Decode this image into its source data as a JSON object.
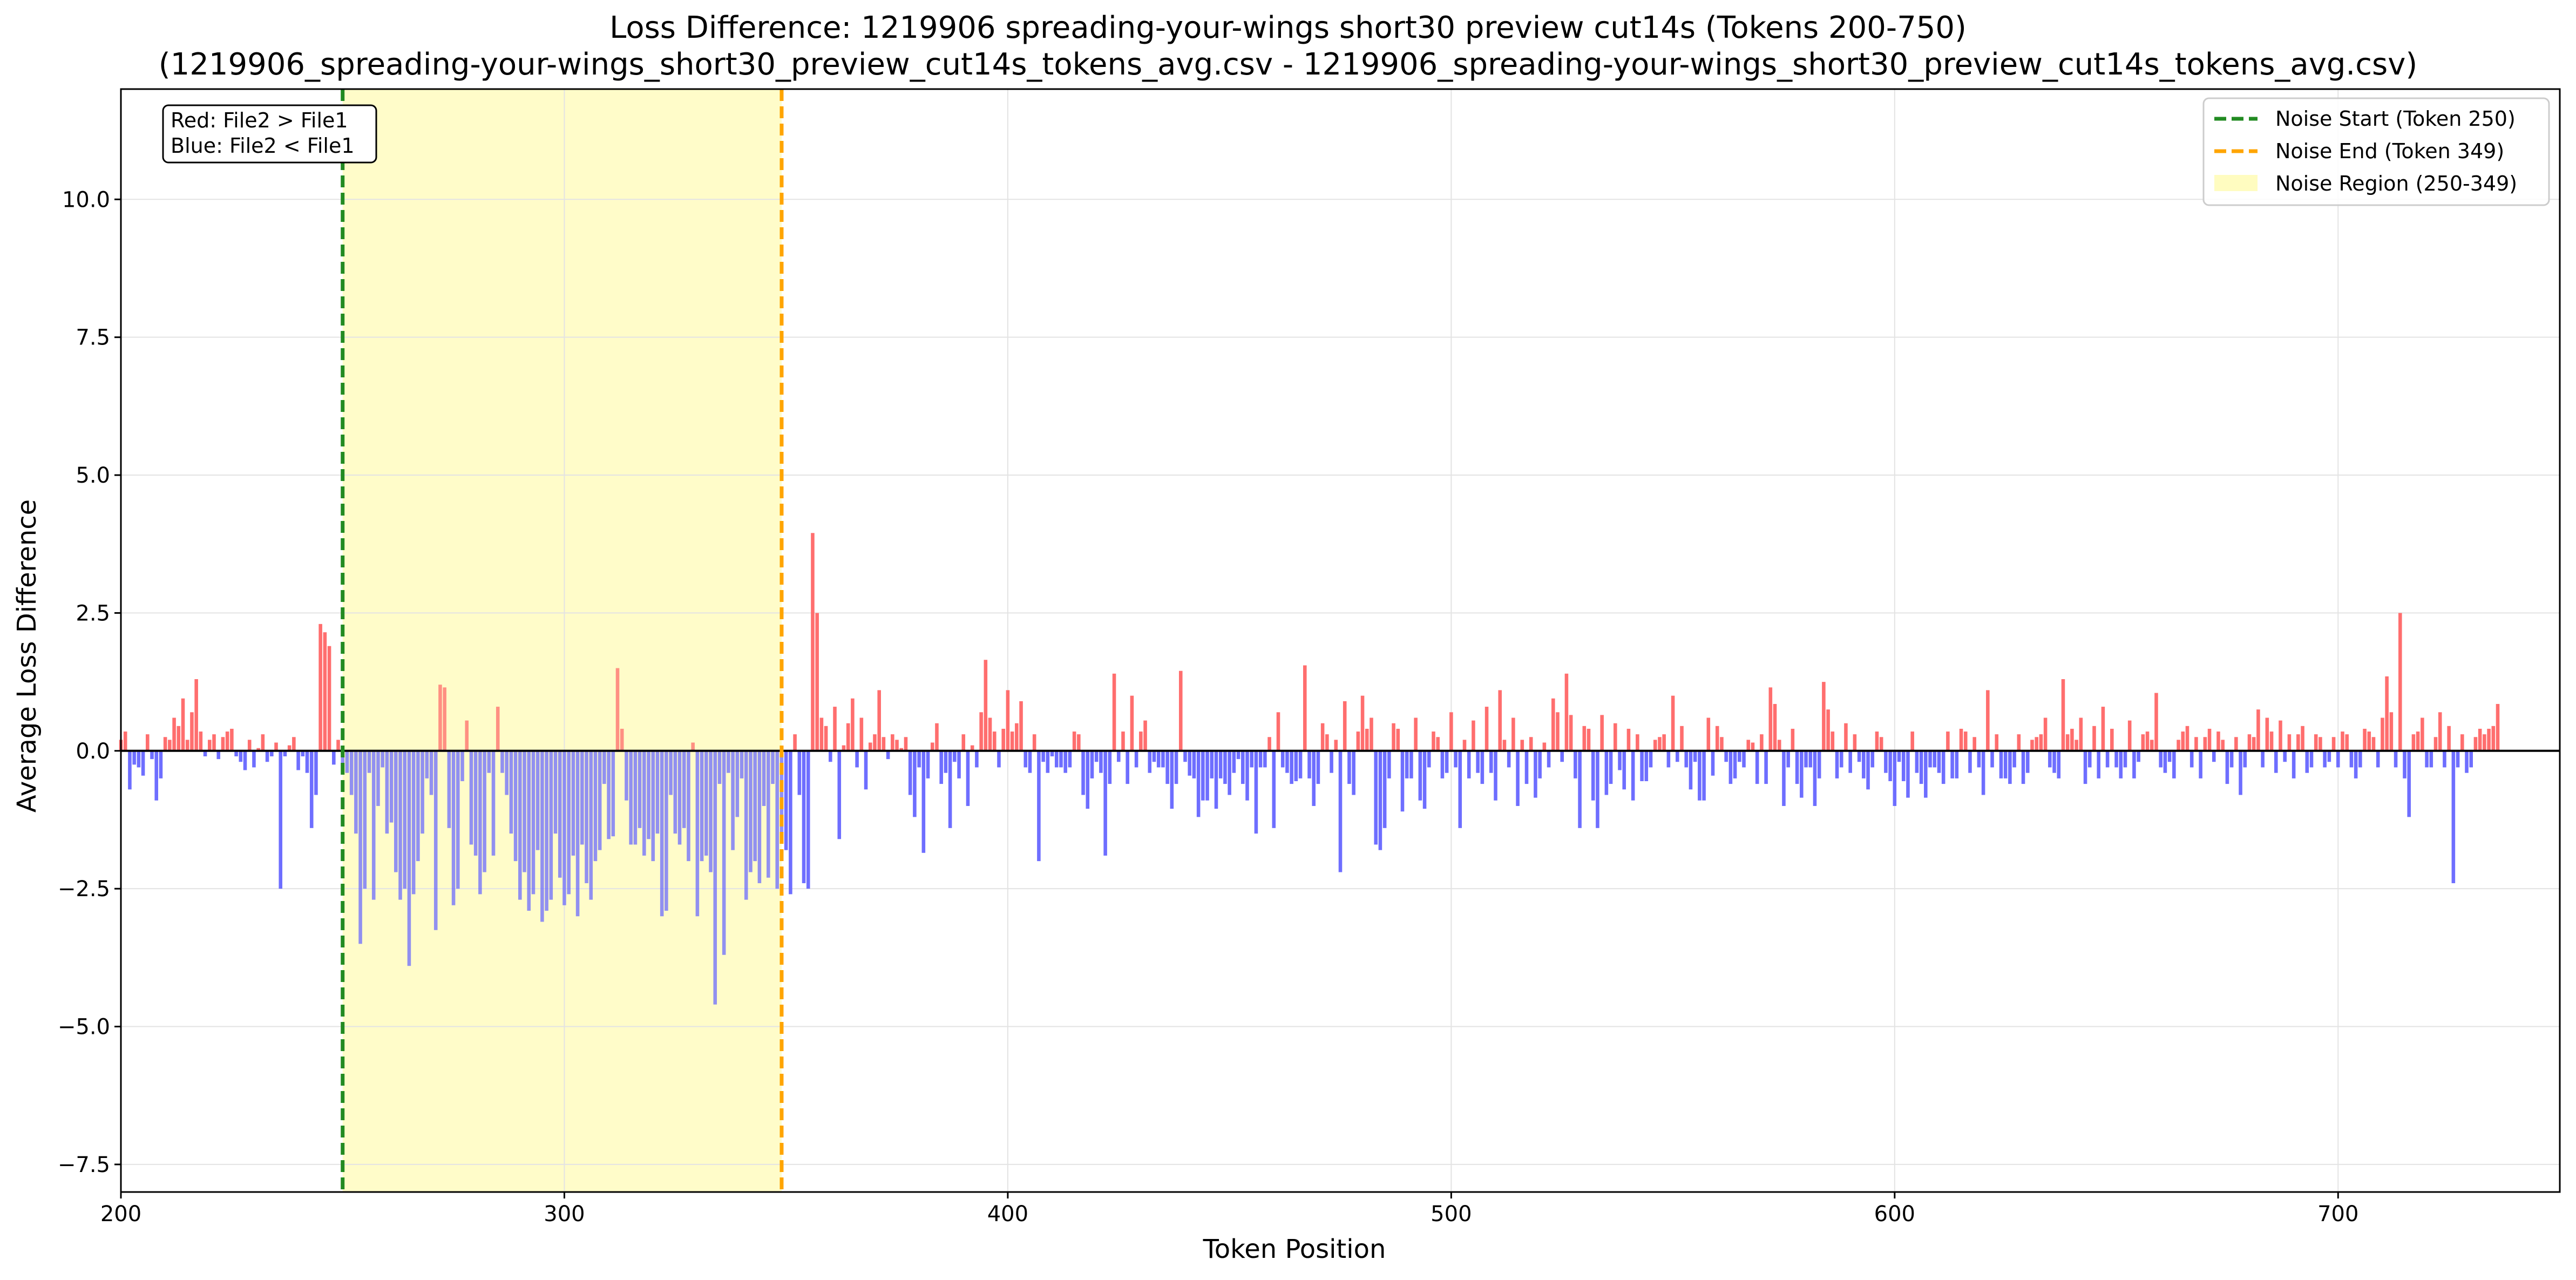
{
  "chart_data": {
    "type": "bar",
    "title_line1": "Loss Difference: 1219906 spreading-your-wings short30 preview cut14s (Tokens 200-750)",
    "title_line2": "(1219906_spreading-your-wings_short30_preview_cut14s_tokens_avg.csv - 1219906_spreading-your-wings_short30_preview_cut14s_tokens_avg.csv)",
    "xlabel": "Token Position",
    "ylabel": "Average Loss Difference",
    "xlim": [
      200,
      750
    ],
    "ylim": [
      -8.0,
      12.0
    ],
    "x_ticks": [
      "200",
      "300",
      "400",
      "500",
      "600",
      "700"
    ],
    "y_ticks": [
      "−7.5",
      "−5.0",
      "−2.5",
      "0.0",
      "2.5",
      "5.0",
      "7.5",
      "10.0"
    ],
    "grid": true,
    "legend_position": "top-right",
    "annotation": {
      "line1": "Red: File2 > File1",
      "line2": "Blue: File2 < File1",
      "position": "top-left"
    },
    "noise_start": 250,
    "noise_end": 349,
    "legend": [
      {
        "label": "Noise Start (Token 250)",
        "color": "#228B22",
        "style": "dashed"
      },
      {
        "label": "Noise End (Token 349)",
        "color": "#FFA500",
        "style": "dashed"
      },
      {
        "label": "Noise Region (250-349)",
        "color": "#FFFFAA",
        "style": "patch"
      }
    ],
    "colors": {
      "positive": "#FF6666",
      "negative": "#6666FF",
      "noise_region": "#FFFCC9",
      "noise_start_line": "#228B22",
      "noise_end_line": "#FFA500",
      "zero_line": "#000000"
    },
    "x_start": 200,
    "values": [
      0.2,
      0.35,
      -0.7,
      -0.25,
      -0.3,
      -0.45,
      0.3,
      -0.15,
      -0.9,
      -0.5,
      0.25,
      0.2,
      0.6,
      0.45,
      0.95,
      0.2,
      0.7,
      1.3,
      0.35,
      -0.1,
      0.2,
      0.3,
      -0.15,
      0.25,
      0.35,
      0.4,
      -0.1,
      -0.2,
      -0.35,
      0.2,
      -0.3,
      0.05,
      0.3,
      -0.2,
      -0.1,
      0.15,
      -2.5,
      -0.1,
      0.1,
      0.25,
      -0.35,
      -0.1,
      -0.4,
      -1.4,
      -0.8,
      2.3,
      2.15,
      1.9,
      -0.25,
      0.2,
      -0.3,
      -0.4,
      -0.8,
      -1.5,
      -3.5,
      -2.5,
      -0.4,
      -2.7,
      -1.0,
      -0.3,
      -1.5,
      -1.3,
      -2.2,
      -2.7,
      -2.5,
      -3.9,
      -2.6,
      -2.0,
      -1.5,
      -0.5,
      -0.8,
      -3.25,
      1.2,
      1.15,
      -1.4,
      -2.8,
      -2.5,
      -0.55,
      0.55,
      -1.7,
      -1.9,
      -2.6,
      -2.2,
      -0.4,
      -1.9,
      0.8,
      -0.4,
      -0.8,
      -1.5,
      -2.0,
      -2.7,
      -2.2,
      -2.9,
      -2.6,
      -1.8,
      -3.1,
      -2.9,
      -2.7,
      -1.5,
      -2.3,
      -2.8,
      -2.6,
      -1.9,
      -3.0,
      -1.7,
      -2.4,
      -2.7,
      -2.0,
      -1.8,
      -0.6,
      -1.6,
      -1.55,
      1.5,
      0.4,
      -0.9,
      -1.7,
      -1.7,
      -1.4,
      -1.9,
      -1.6,
      -2.0,
      -1.5,
      -3.0,
      -2.9,
      -0.8,
      -1.5,
      -1.7,
      -1.4,
      -2.0,
      0.15,
      -3.0,
      -2.0,
      -1.9,
      -2.2,
      -4.6,
      -0.6,
      -3.7,
      -0.4,
      -1.8,
      -1.2,
      -0.5,
      -2.7,
      -2.2,
      -2.0,
      -2.4,
      -1.0,
      -2.3,
      -0.6,
      -2.5,
      -1.6,
      -1.8,
      -2.6,
      0.3,
      -0.8,
      -2.4,
      -2.5,
      3.95,
      2.5,
      0.6,
      0.45,
      -0.2,
      0.8,
      -1.6,
      0.1,
      0.5,
      0.95,
      -0.3,
      0.6,
      -0.7,
      0.15,
      0.3,
      1.1,
      0.25,
      -0.15,
      0.3,
      0.2,
      0.05,
      0.25,
      -0.8,
      -1.2,
      -0.3,
      -1.85,
      -0.5,
      0.15,
      0.5,
      -0.6,
      -0.4,
      -1.4,
      -0.2,
      -0.5,
      0.3,
      -1.0,
      0.1,
      -0.3,
      0.7,
      1.65,
      0.6,
      0.35,
      -0.3,
      0.4,
      1.1,
      0.35,
      0.5,
      0.9,
      -0.3,
      -0.4,
      0.3,
      -2.0,
      -0.2,
      -0.4,
      -0.1,
      -0.3,
      -0.3,
      -0.4,
      -0.3,
      0.35,
      0.3,
      -0.8,
      -1.05,
      -0.5,
      -0.2,
      -0.4,
      -1.9,
      -0.6,
      1.4,
      -0.2,
      0.35,
      -0.6,
      1.0,
      -0.3,
      0.35,
      0.55,
      -0.4,
      -0.2,
      -0.3,
      -0.3,
      -0.6,
      -1.05,
      -0.6,
      1.45,
      -0.2,
      -0.45,
      -0.5,
      -1.2,
      -0.9,
      -0.9,
      -0.5,
      -1.05,
      -0.5,
      -0.6,
      -0.8,
      -0.4,
      -0.15,
      -0.6,
      -0.9,
      -0.3,
      -1.5,
      -0.3,
      -0.3,
      0.25,
      -1.4,
      0.7,
      -0.3,
      -0.4,
      -0.6,
      -0.55,
      -0.5,
      1.55,
      -0.5,
      -1.0,
      -0.6,
      0.5,
      0.3,
      -0.4,
      0.2,
      -2.2,
      0.9,
      -0.6,
      -0.8,
      0.35,
      1.0,
      0.4,
      0.6,
      -1.7,
      -1.8,
      -1.4,
      -0.5,
      0.5,
      0.4,
      -1.1,
      -0.5,
      -0.5,
      0.6,
      -0.9,
      -1.05,
      -0.3,
      0.35,
      0.25,
      -0.5,
      -0.4,
      0.7,
      -0.3,
      -1.4,
      0.2,
      -0.5,
      0.55,
      -0.4,
      -0.6,
      0.8,
      -0.4,
      -0.9,
      1.1,
      0.2,
      -0.3,
      0.6,
      -1.0,
      0.2,
      -0.6,
      0.25,
      -0.85,
      -0.5,
      0.15,
      -0.3,
      0.95,
      0.7,
      -0.2,
      1.4,
      0.65,
      -0.5,
      -1.4,
      0.45,
      0.4,
      -0.9,
      -1.4,
      0.65,
      -0.8,
      -0.6,
      0.5,
      -0.35,
      -0.7,
      0.4,
      -0.9,
      0.3,
      -0.55,
      -0.55,
      -0.3,
      0.2,
      0.25,
      0.3,
      -0.3,
      1.0,
      -0.2,
      0.45,
      -0.3,
      -0.7,
      -0.2,
      -0.9,
      -0.9,
      0.6,
      -0.45,
      0.45,
      0.25,
      -0.2,
      -0.6,
      -0.5,
      -0.2,
      -0.3,
      0.2,
      0.15,
      -0.6,
      0.3,
      -0.6,
      1.15,
      0.85,
      0.2,
      -1.0,
      -0.3,
      0.4,
      -0.6,
      -0.85,
      -0.3,
      -0.3,
      -1.0,
      -0.5,
      1.25,
      0.75,
      0.35,
      -0.5,
      -0.3,
      0.5,
      -0.4,
      0.3,
      -0.2,
      -0.5,
      -0.7,
      -0.3,
      0.35,
      0.25,
      -0.4,
      -0.55,
      -1.0,
      -0.2,
      -0.55,
      -0.85,
      0.35,
      -0.4,
      -0.6,
      -0.85,
      -0.3,
      -0.3,
      -0.4,
      -0.6,
      0.35,
      -0.5,
      -0.5,
      0.4,
      0.35,
      -0.4,
      0.25,
      -0.3,
      -0.8,
      1.1,
      -0.3,
      0.3,
      -0.5,
      -0.5,
      -0.6,
      -0.3,
      0.3,
      -0.6,
      -0.4,
      0.2,
      0.25,
      0.3,
      0.6,
      -0.3,
      -0.4,
      -0.5,
      1.3,
      0.3,
      0.4,
      0.2,
      0.6,
      -0.6,
      -0.3,
      0.45,
      -0.5,
      0.8,
      -0.3,
      0.4,
      -0.3,
      -0.5,
      -0.3,
      0.55,
      -0.5,
      -0.2,
      0.3,
      0.35,
      0.2,
      1.05,
      -0.3,
      -0.4,
      -0.2,
      -0.5,
      0.2,
      0.35,
      0.45,
      -0.3,
      0.25,
      -0.5,
      0.25,
      0.4,
      -0.2,
      0.35,
      0.2,
      -0.6,
      -0.3,
      0.25,
      -0.8,
      -0.3,
      0.3,
      0.25,
      0.75,
      -0.3,
      0.6,
      0.35,
      -0.4,
      0.55,
      -0.2,
      0.3,
      -0.5,
      0.3,
      0.45,
      -0.4,
      -0.3,
      0.3,
      0.25,
      -0.3,
      -0.2,
      0.25,
      -0.3,
      0.35,
      0.3,
      -0.3,
      -0.5,
      -0.3,
      0.4,
      0.35,
      0.25,
      -0.3,
      0.6,
      1.35,
      0.7,
      -0.3,
      2.5,
      -0.5,
      -1.2,
      0.3,
      0.35,
      0.6,
      -0.3,
      -0.3,
      0.25,
      0.7,
      -0.3,
      0.45,
      -2.4,
      -0.3,
      0.3,
      -0.4,
      -0.3,
      0.25,
      0.4,
      0.3,
      0.4,
      0.45,
      0.85
    ]
  }
}
